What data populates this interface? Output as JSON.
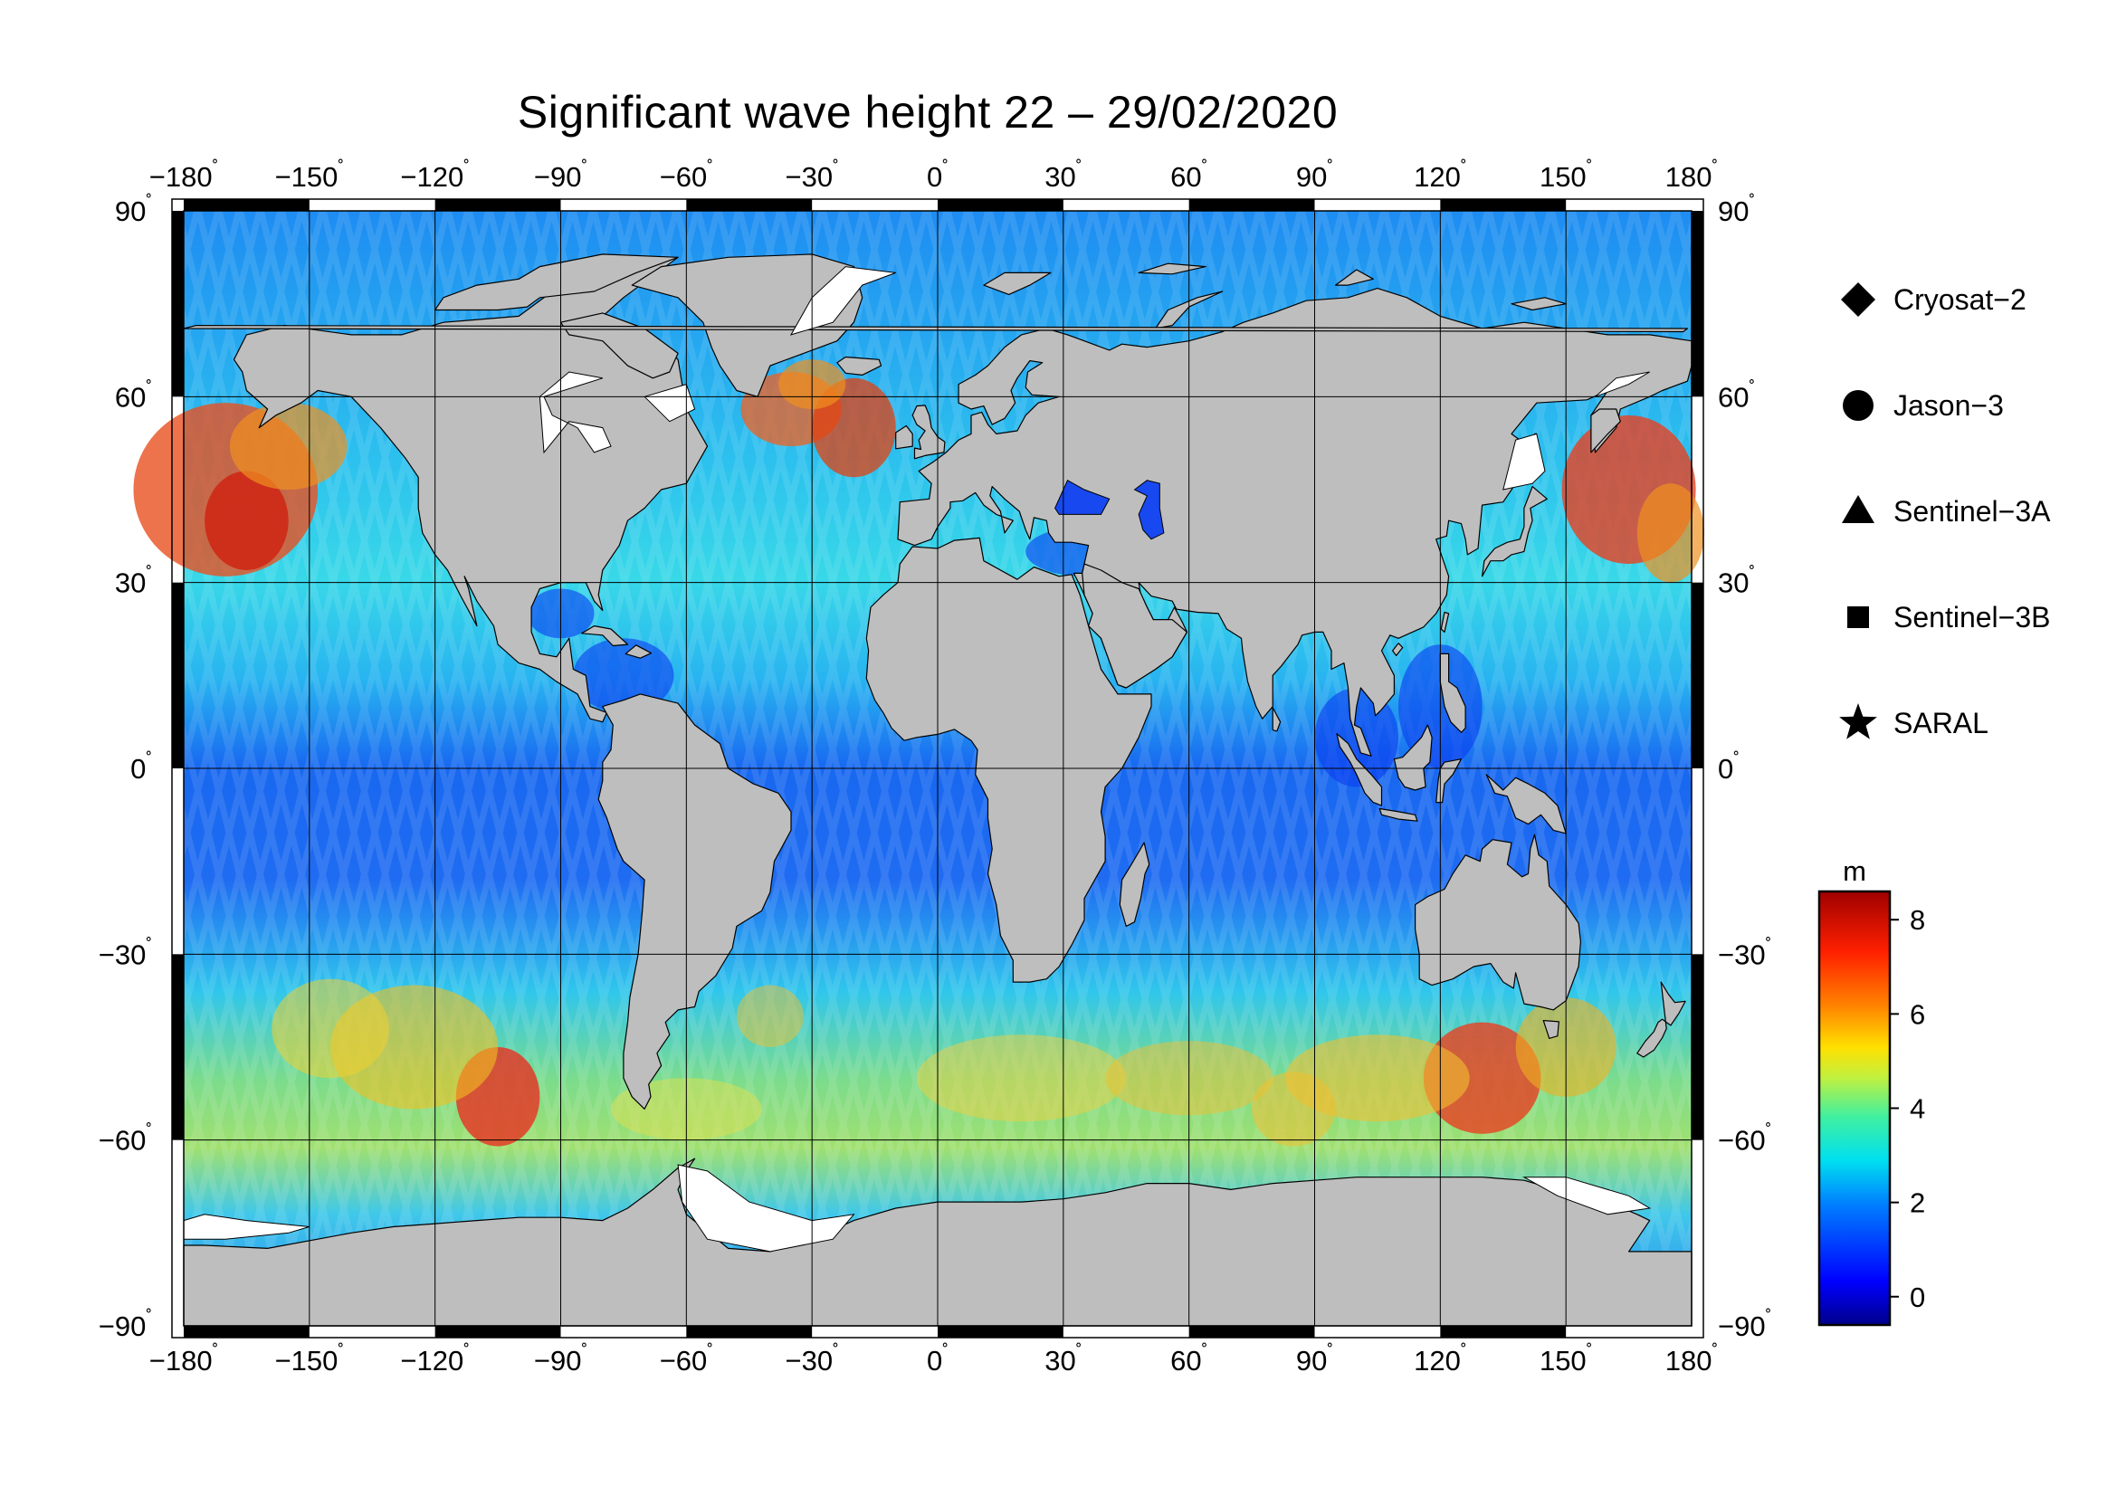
{
  "title": "Significant wave height 22 – 29/02/2020",
  "axes": {
    "lon_ticks": [
      -180,
      -150,
      -120,
      -90,
      -60,
      -30,
      0,
      30,
      60,
      90,
      120,
      150,
      180
    ],
    "lat_ticks": [
      90,
      60,
      30,
      0,
      -30,
      -60,
      -90
    ],
    "degree_symbol": "˚",
    "xlim": [
      -180,
      180
    ],
    "ylim": [
      -90,
      90
    ]
  },
  "legend": {
    "position": "right",
    "items": [
      {
        "name": "Cryosat−2",
        "marker": "diamond"
      },
      {
        "name": "Jason−3",
        "marker": "circle"
      },
      {
        "name": "Sentinel−3A",
        "marker": "triangle"
      },
      {
        "name": "Sentinel−3B",
        "marker": "square"
      },
      {
        "name": "SARAL",
        "marker": "star"
      }
    ]
  },
  "colorbar": {
    "unit": "m",
    "ticks": [
      0,
      2,
      4,
      6,
      8
    ],
    "range": [
      -0.6,
      8.6
    ],
    "colormap": [
      "#00008b",
      "#0000ff",
      "#0080ff",
      "#00e0f0",
      "#40f0a0",
      "#c0f040",
      "#ffe000",
      "#ff8000",
      "#ff2000",
      "#a00000"
    ]
  },
  "map_colors": {
    "land": "#bebebe",
    "ice": "#ffffff",
    "low_wave": "#1040f0",
    "mid_wave": "#20c8f0",
    "high_wave": "#ffd020",
    "extreme_wave": "#e02010"
  }
}
